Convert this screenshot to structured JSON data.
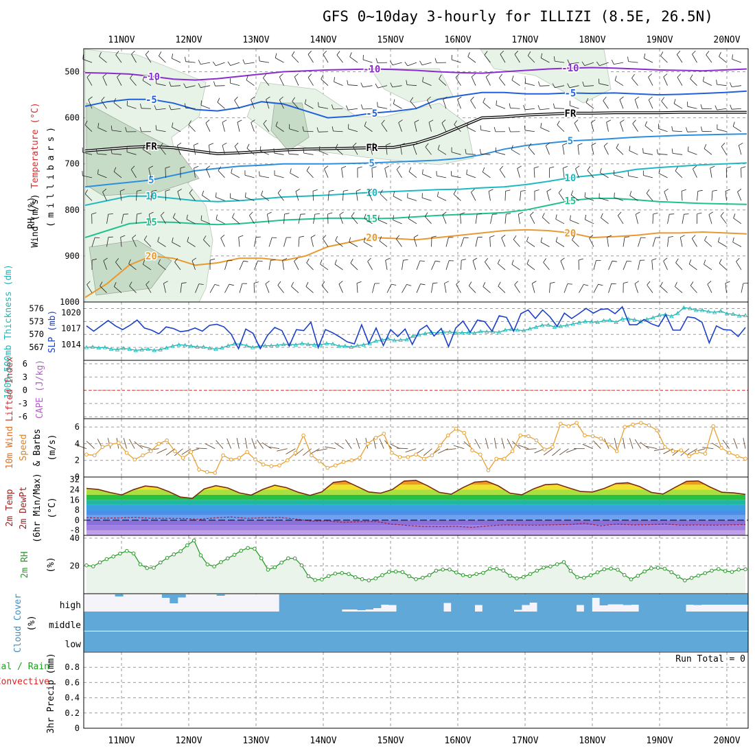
{
  "title": "GFS 0~10day 3-hourly for ILLIZI (8.5E, 26.5N)",
  "colors": {
    "grid": "#9a9a9a",
    "rh_fill_light": "#e7f3e7",
    "rh_fill_mid": "#c7dcc7",
    "slp": "#1a3fc8",
    "thickness": "#1fb5b5",
    "cape_zero": "#e04040",
    "wind_speed": "#e8a030",
    "rh2m": "#2a9a2a",
    "cloud": "#5fa8d8",
    "cloud_bg": "#f4f4fa"
  },
  "chart_data": [
    {
      "type": "line",
      "panel": "upper-air",
      "dates": [
        "11NOV",
        "12NOV",
        "13NOV",
        "14NOV",
        "15NOV",
        "16NOV",
        "17NOV",
        "18NOV",
        "19NOV",
        "20NOV"
      ],
      "ylabel_parts": [
        "Wind (m/s)",
        "Temperature (°C)",
        "RH (%)",
        "(millibars)"
      ],
      "yticks": [
        500,
        600,
        700,
        800,
        900,
        1000
      ],
      "temperature_contours": [
        {
          "label": "-10",
          "color": "#8a2bd0",
          "p": [
            502,
            503,
            505,
            510,
            516,
            518,
            515,
            510,
            505,
            500,
            498,
            496,
            495,
            494,
            495,
            497,
            500,
            502,
            503,
            500,
            497,
            494,
            492,
            491,
            492,
            494,
            496,
            497,
            498,
            496,
            494
          ]
        },
        {
          "label": "-5",
          "color": "#2060d8",
          "p": [
            575,
            565,
            560,
            560,
            568,
            582,
            585,
            578,
            565,
            570,
            585,
            600,
            597,
            590,
            586,
            580,
            560,
            552,
            545,
            545,
            548,
            548,
            546,
            547,
            546,
            548,
            550,
            549,
            547,
            545,
            542
          ]
        },
        {
          "label": "FR",
          "color": "#000000",
          "p": [
            672,
            668,
            664,
            662,
            665,
            672,
            678,
            676,
            673,
            670,
            668,
            667,
            666,
            665,
            664,
            655,
            640,
            620,
            600,
            598,
            594,
            592,
            590,
            590,
            589,
            589,
            589,
            588,
            588,
            588,
            588
          ]
        },
        {
          "label": "5",
          "color": "#2a8fe0",
          "p": [
            750,
            745,
            740,
            735,
            725,
            715,
            710,
            705,
            703,
            700,
            700,
            700,
            699,
            698,
            696,
            694,
            692,
            688,
            680,
            668,
            660,
            655,
            650,
            648,
            645,
            642,
            640,
            638,
            637,
            636,
            635
          ]
        },
        {
          "label": "10",
          "color": "#1fb8c0",
          "p": [
            790,
            780,
            770,
            770,
            775,
            780,
            782,
            780,
            776,
            772,
            770,
            768,
            765,
            762,
            760,
            758,
            756,
            755,
            752,
            750,
            745,
            738,
            730,
            725,
            720,
            712,
            708,
            705,
            702,
            700,
            698
          ]
        },
        {
          "label": "15",
          "color": "#20c090",
          "p": [
            860,
            845,
            830,
            826,
            827,
            830,
            832,
            830,
            826,
            822,
            820,
            818,
            818,
            819,
            818,
            815,
            812,
            810,
            808,
            806,
            800,
            790,
            780,
            775,
            775,
            778,
            782,
            784,
            786,
            787,
            788
          ]
        },
        {
          "label": "20",
          "color": "#e89a30",
          "p": [
            990,
            960,
            920,
            900,
            905,
            920,
            915,
            905,
            905,
            910,
            900,
            880,
            870,
            860,
            862,
            865,
            860,
            855,
            850,
            845,
            843,
            845,
            850,
            860,
            858,
            855,
            850,
            850,
            848,
            850,
            852
          ]
        }
      ]
    },
    {
      "type": "line",
      "panel": "slp-thickness",
      "ylabel_left": "1000-500mb Thickness (dm)",
      "ylabel_right": "SLP (mb)",
      "yticks_left": [
        567,
        570,
        573,
        576
      ],
      "yticks_right": [
        1014,
        1017,
        1020
      ],
      "slp_mb": [
        1017.5,
        1016.5,
        1017.5,
        1018.5,
        1017.5,
        1016.8,
        1017.6,
        1018.6,
        1017.1,
        1016.7,
        1016.0,
        1017.3,
        1017.0,
        1016.4,
        1016.6,
        1017.1,
        1016.5,
        1017.6,
        1017.8,
        1017.3,
        1015.9,
        1013.2,
        1016.9,
        1016.1,
        1013.2,
        1015.7,
        1017.2,
        1016.6,
        1013.7,
        1016.8,
        1016.6,
        1018.2,
        1013.4,
        1016.8,
        1016.2,
        1015.4,
        1014.5,
        1014.1,
        1017.7,
        1014.2,
        1017.1,
        1013.8,
        1016.8,
        1015.5,
        1016.9,
        1014.0,
        1016.7,
        1017.6,
        1015.6,
        1017.0,
        1013.6,
        1017.1,
        1018.4,
        1016.3,
        1018.6,
        1018.3,
        1016.5,
        1019.4,
        1019.1,
        1016.5,
        1019.8,
        1020.5,
        1018.9,
        1020.5,
        1019.2,
        1017.4,
        1019.9,
        1018.9,
        1019.8,
        1020.8,
        1019.9,
        1020.6,
        1020.7,
        1019.8,
        1021.1,
        1017.7,
        1017.7,
        1018.7,
        1017.9,
        1017.4,
        1019.6,
        1016.7,
        1016.7,
        1019.2,
        1019.0,
        1018.2,
        1014.3,
        1017.5,
        1016.8,
        1016.7,
        1015.5,
        1017.2
      ],
      "thickness_dm": [
        567.0,
        567.1,
        566.9,
        567.0,
        566.6,
        566.5,
        566.8,
        566.6,
        566.3,
        566.5,
        566.6,
        566.3,
        566.5,
        566.9,
        567.3,
        567.6,
        567.5,
        567.3,
        567.1,
        567.1,
        566.8,
        566.6,
        566.9,
        567.4,
        567.8,
        567.8,
        567.4,
        567.0,
        567.3,
        567.4,
        567.4,
        567.5,
        567.7,
        567.7,
        567.6,
        567.9,
        567.7,
        567.6,
        567.6,
        567.9,
        567.8,
        567.3,
        567.3,
        567.1,
        567.4,
        567.6,
        567.9,
        568.5,
        568.7,
        569.0,
        568.6,
        568.7,
        568.8,
        569.6,
        569.9,
        570.2,
        570.5,
        570.3,
        570.5,
        570.6,
        570.3,
        570.4,
        570.4,
        570.3,
        570.7,
        570.6,
        570.6,
        570.5,
        571.0,
        571.2,
        571.0,
        570.9,
        571.3,
        571.7,
        572.1,
        572.2,
        571.7,
        571.9,
        572.1,
        572.4,
        572.7,
        573.0,
        572.9,
        572.8,
        573.2,
        573.3,
        572.8,
        573.6,
        573.6,
        573.4,
        573.0,
        573.5,
        573.9,
        574.4,
        574.6,
        574.2,
        574.9,
        576.2,
        576.0,
        575.6,
        575.6,
        575.3,
        575.1,
        575.4,
        574.8,
        574.7,
        574.3,
        574.4
      ]
    },
    {
      "type": "line",
      "panel": "cape-lifted-index",
      "ylabel_left": "Lifted Index",
      "ylabel_right": "CAPE (J/kg)",
      "yticks_left": [
        "6",
        "3",
        "0",
        "-3",
        "-6"
      ],
      "lifted_index": []
    },
    {
      "type": "line",
      "panel": "wind10m",
      "ylabel": [
        "10m Wind",
        "Speed",
        "& Barbs",
        "(m/s)"
      ],
      "yticks": [
        0,
        2,
        4,
        6
      ],
      "wind_speed_ms": [
        2.7,
        2.6,
        3.6,
        3.9,
        4.1,
        2.9,
        2.1,
        2.6,
        3.1,
        4.0,
        4.4,
        3.1,
        2.3,
        3.0,
        0.9,
        0.6,
        0.5,
        2.6,
        2.1,
        2.3,
        3.0,
        2.1,
        1.5,
        1.3,
        1.4,
        2.0,
        2.9,
        5.0,
        2.6,
        1.9,
        1.1,
        1.4,
        1.8,
        2.0,
        2.3,
        4.0,
        4.7,
        5.2,
        2.9,
        2.4,
        2.4,
        2.7,
        2.2,
        2.6,
        3.8,
        5.0,
        5.8,
        5.3,
        3.2,
        2.7,
        0.8,
        2.2,
        2.2,
        3.1,
        5.0,
        4.9,
        4.4,
        3.3,
        3.6,
        6.4,
        6.1,
        6.5,
        5.0,
        4.9,
        4.6,
        3.9,
        3.1,
        6.0,
        6.3,
        6.5,
        6.2,
        5.6,
        3.6,
        3.1,
        3.2,
        2.5,
        3.0,
        2.8,
        6.1,
        3.5,
        2.9,
        2.5,
        2.2
      ]
    },
    {
      "type": "area",
      "panel": "temperature-2m",
      "ylabel": [
        "2m Temp",
        "2m DewPt",
        "(6hr Min/Max)",
        "(°C)"
      ],
      "yticks": [
        -8,
        0,
        8,
        16,
        24,
        32
      ],
      "temp_c": [
        25.0,
        24.2,
        21.8,
        19.9,
        24.1,
        26.9,
        26.0,
        22.5,
        18.2,
        17.2,
        24.6,
        27.2,
        25.4,
        21.5,
        19.7,
        24.3,
        27.5,
        25.6,
        22.0,
        19.5,
        22.3,
        29.8,
        30.9,
        26.6,
        22.2,
        21.3,
        24.2,
        30.8,
        31.4,
        27.1,
        21.9,
        20.4,
        25.7,
        30.0,
        30.7,
        27.0,
        21.3,
        20.0,
        24.7,
        28.0,
        28.4,
        25.4,
        22.6,
        22.2,
        25.0,
        28.9,
        29.5,
        26.6,
        21.9,
        20.6,
        25.7,
        30.6,
        30.9,
        26.1,
        22.0,
        21.5,
        20.3
      ],
      "dewpoint_c": [
        2.0,
        1.6,
        1.7,
        2.2,
        1.5,
        1.4,
        1.3,
        0.7,
        1.8,
        2.5,
        1.4,
        1.9,
        2.2,
        0.9,
        -0.8,
        -0.5,
        -1.7,
        -1.2,
        -1.0,
        -3.2,
        -4.2,
        -5.0,
        -5.1,
        -4.9,
        -5.7,
        -4.5,
        -3.8,
        -3.9,
        -4.0,
        -3.7,
        -3.5,
        -2.5,
        -4.5,
        -3.0,
        -3.8,
        -3.6,
        -3.0,
        -4.0,
        -3.8,
        -4.0,
        -3.7,
        -3.6
      ]
    },
    {
      "type": "line",
      "panel": "rh2m",
      "ylabel": [
        "2m RH",
        "(%)"
      ],
      "yticks": [
        20,
        40
      ],
      "rh_pct": [
        20.4,
        19.7,
        22.6,
        24.9,
        26.8,
        28.9,
        30.8,
        29.0,
        21.1,
        18.5,
        18.7,
        22.5,
        25.8,
        28.3,
        30.6,
        34.9,
        38.3,
        27.6,
        21.1,
        19.6,
        22.8,
        25.4,
        28.0,
        31.0,
        32.9,
        32.4,
        25.5,
        17.3,
        19.0,
        22.4,
        25.5,
        25.4,
        20.4,
        12.6,
        9.9,
        10.3,
        12.7,
        14.5,
        14.9,
        14.2,
        11.9,
        10.5,
        9.6,
        11.0,
        13.4,
        15.7,
        15.9,
        15.6,
        12.6,
        10.5,
        11.5,
        13.4,
        16.6,
        17.4,
        17.4,
        15.3,
        13.4,
        12.7,
        14.2,
        15.0,
        18.0,
        17.9,
        16.7,
        12.9,
        11.0,
        12.0,
        14.2,
        16.6,
        18.8,
        19.6,
        21.2,
        22.8,
        16.4,
        11.9,
        11.5,
        13.3,
        15.4,
        17.6,
        18.1,
        17.3,
        13.5,
        10.4,
        12.9,
        16.0,
        18.3,
        18.7,
        18.0,
        15.5,
        12.3,
        9.6,
        11.4,
        13.0,
        14.8,
        16.6,
        17.8,
        16.3,
        15.7,
        17.4,
        17.6
      ]
    },
    {
      "type": "bar",
      "panel": "cloud-cover",
      "ylabel": [
        "Cloud Cover",
        "(%)"
      ],
      "levels": [
        "high",
        "middle",
        "low"
      ],
      "high_pct": [
        0,
        0,
        0,
        0,
        12,
        0,
        0,
        0,
        0,
        0,
        20,
        52,
        18,
        0,
        0,
        0,
        0,
        8,
        0,
        0,
        0,
        0,
        0,
        0,
        0,
        100,
        100,
        100,
        100,
        100,
        100,
        100,
        100,
        88,
        88,
        92,
        88,
        80,
        60,
        62,
        100,
        100,
        100,
        100,
        100,
        100,
        50,
        100,
        100,
        100,
        62,
        100,
        100,
        100,
        100,
        90,
        62,
        48,
        100,
        100,
        100,
        100,
        100,
        62,
        100,
        20,
        64,
        58,
        58,
        62,
        60,
        100,
        100,
        100,
        100,
        100,
        100,
        60,
        62,
        60,
        60,
        60,
        60,
        60,
        60
      ],
      "middle_pct": [
        100,
        100,
        100,
        100,
        100,
        100,
        100,
        100,
        100,
        100,
        100,
        100,
        100,
        100,
        100,
        100,
        100,
        100,
        100,
        100,
        100,
        100,
        100,
        100,
        100,
        100,
        100,
        100,
        100,
        100,
        100,
        100,
        100,
        100,
        100,
        100,
        100,
        100,
        100,
        100,
        100,
        100,
        100,
        100,
        100,
        100,
        100,
        100,
        100,
        100,
        100,
        100,
        100,
        100,
        100,
        100,
        100,
        100,
        100,
        100,
        100,
        100,
        100,
        100,
        100,
        100,
        100,
        100,
        100,
        100,
        100,
        100,
        100,
        100,
        100,
        100,
        100,
        100,
        100,
        100,
        100,
        100,
        100,
        100,
        100
      ],
      "low_pct": [
        100,
        100,
        100,
        100,
        100,
        100,
        100,
        100,
        100,
        100,
        100,
        100,
        100,
        100,
        100,
        100,
        100,
        100,
        100,
        100,
        100,
        100,
        100,
        100,
        100,
        100,
        100,
        100,
        100,
        100,
        100,
        100,
        100,
        100,
        100,
        100,
        100,
        100,
        100,
        100,
        100,
        100,
        100,
        100,
        100,
        100,
        100,
        100,
        100,
        100,
        100,
        100,
        100,
        100,
        100,
        100,
        100,
        100,
        100,
        100,
        100,
        100,
        100,
        100,
        100,
        100,
        100,
        100,
        100,
        100,
        100,
        100,
        100,
        100,
        100,
        100,
        100,
        100,
        100,
        100,
        100,
        100,
        100,
        100,
        100
      ]
    },
    {
      "type": "bar",
      "panel": "precip-3hr",
      "ylabel": [
        "3hr Precip (mm)"
      ],
      "ylabel_left": [
        "Total / Rain",
        "Convective"
      ],
      "run_total": "Run Total = 0",
      "yticks": [
        "0",
        "0.2",
        "0.4",
        "0.6",
        "0.8"
      ],
      "ylim": [
        0,
        1
      ],
      "precip_mm": []
    }
  ]
}
